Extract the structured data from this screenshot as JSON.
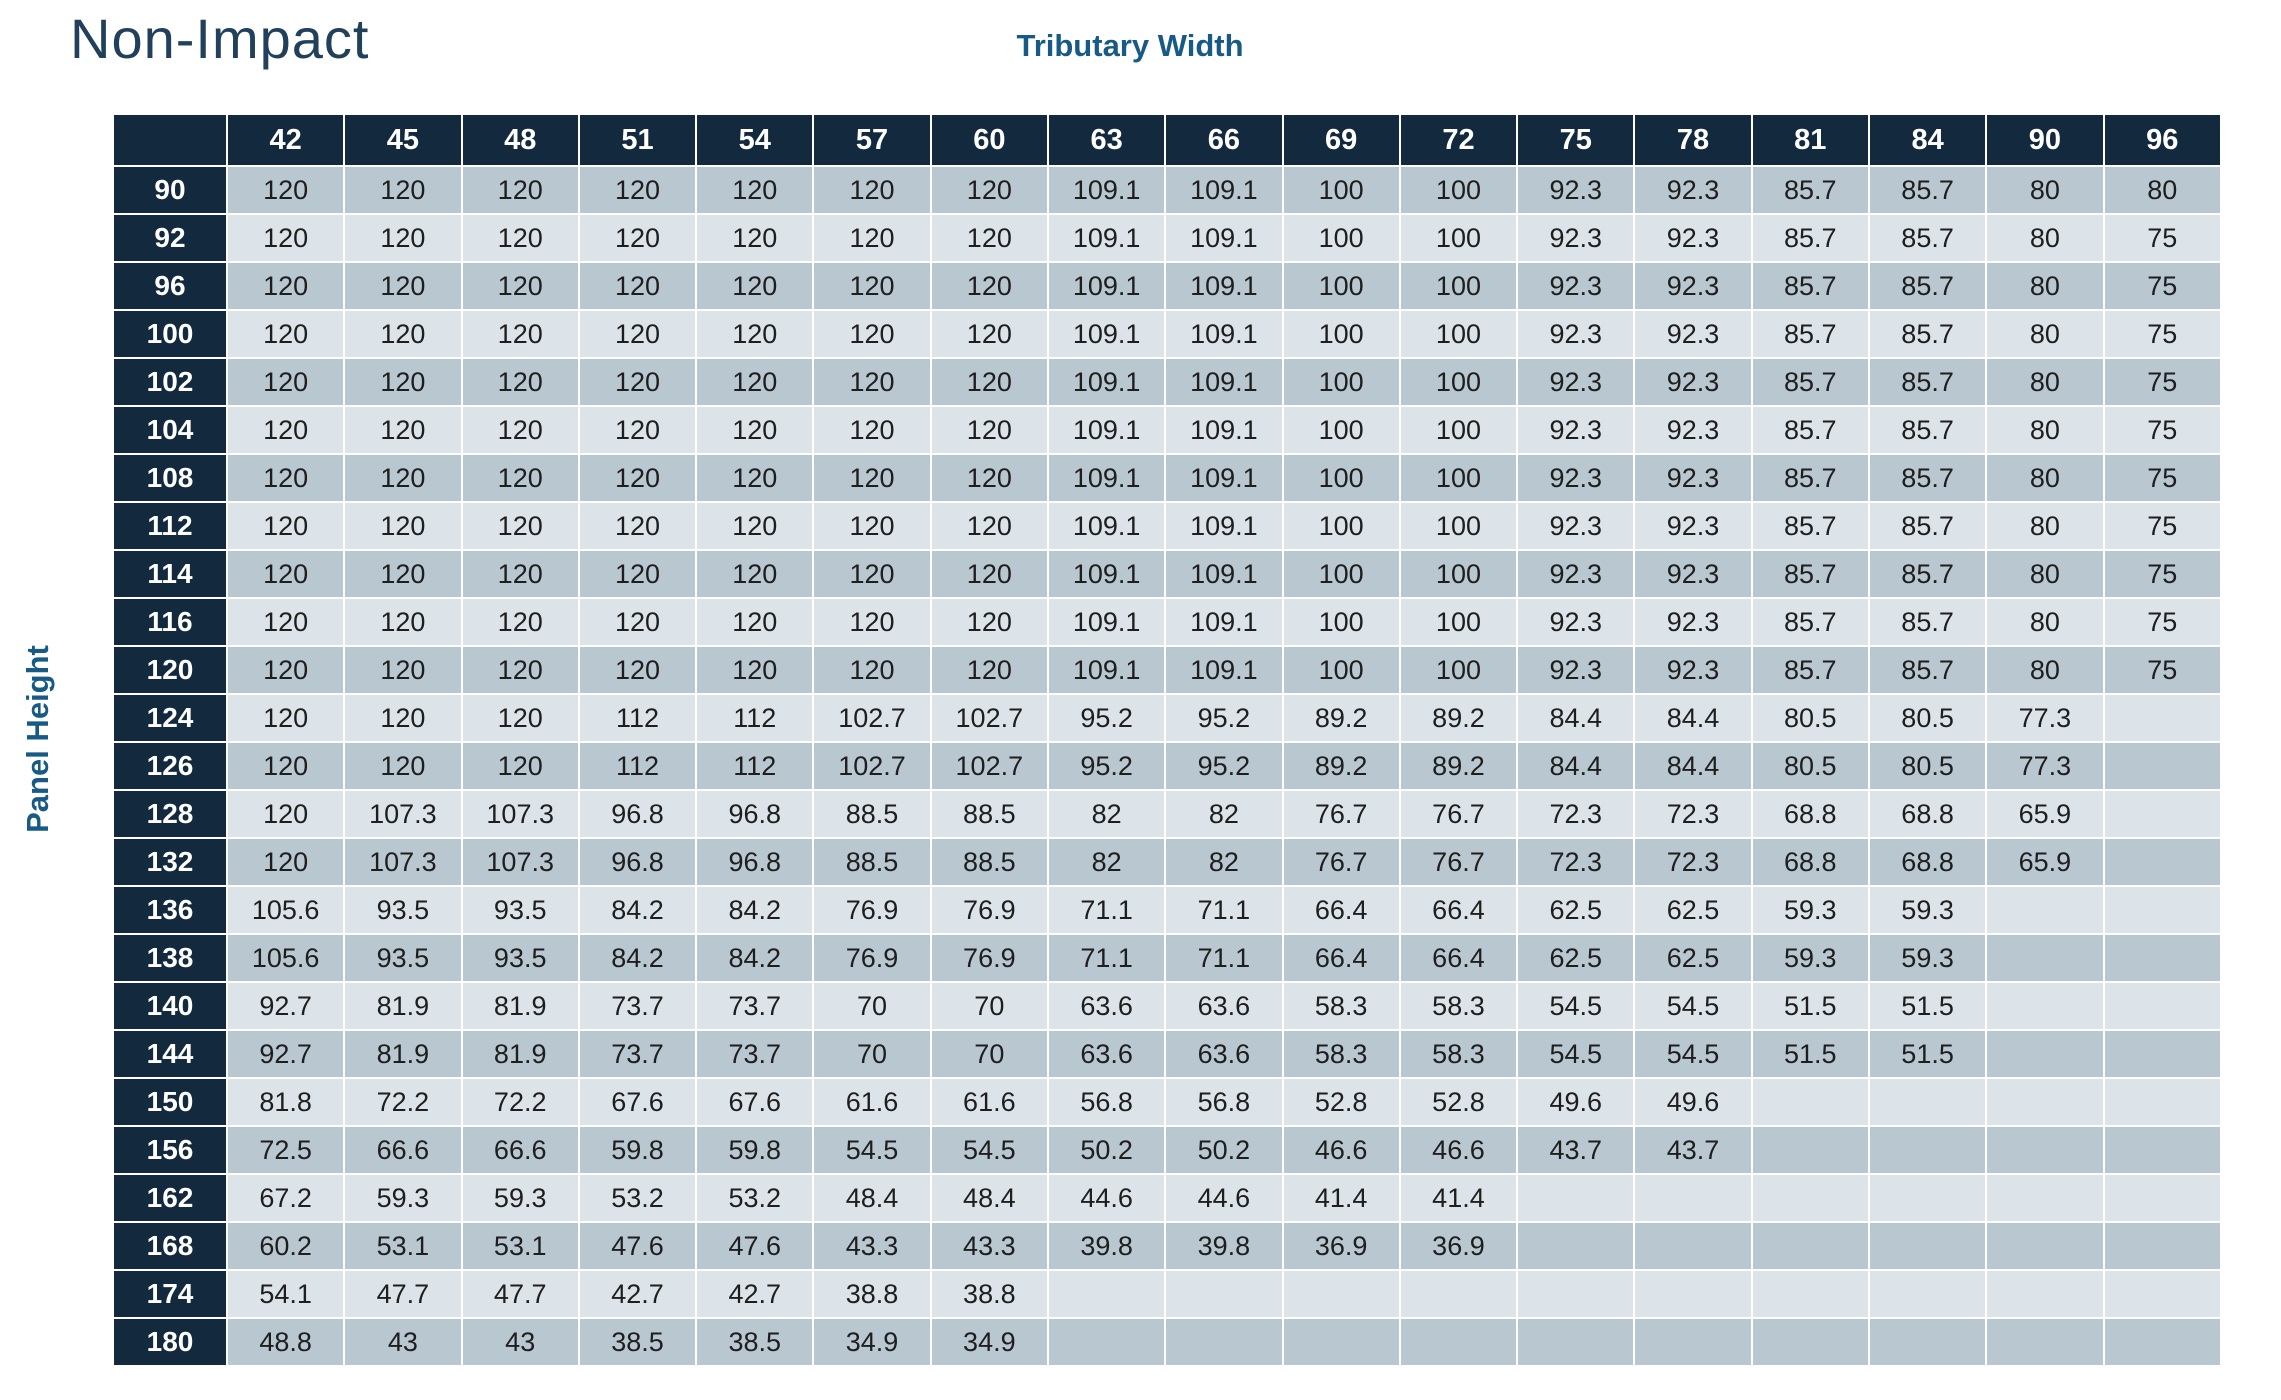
{
  "title": "Non-Impact",
  "labels": {
    "column_group": "Tributary Width",
    "row_group": "Panel Height"
  },
  "colors": {
    "header_navy": "#13293e",
    "stripe_dark": "#b9c7d0",
    "stripe_light": "#dde4e9",
    "label_blue": "#175a86",
    "title_navy": "#21405c",
    "cell_text": "#1e1e1e",
    "header_text": "#ffffff"
  },
  "chart_data": {
    "type": "table",
    "title": "Non-Impact",
    "xlabel": "Tributary Width",
    "ylabel": "Panel Height",
    "columns": [
      "42",
      "45",
      "48",
      "51",
      "54",
      "57",
      "60",
      "63",
      "66",
      "69",
      "72",
      "75",
      "78",
      "81",
      "84",
      "90",
      "96"
    ],
    "corner": "",
    "rows": [
      {
        "height": "90",
        "values": [
          "120",
          "120",
          "120",
          "120",
          "120",
          "120",
          "120",
          "109.1",
          "109.1",
          "100",
          "100",
          "92.3",
          "92.3",
          "85.7",
          "85.7",
          "80",
          "80"
        ]
      },
      {
        "height": "92",
        "values": [
          "120",
          "120",
          "120",
          "120",
          "120",
          "120",
          "120",
          "109.1",
          "109.1",
          "100",
          "100",
          "92.3",
          "92.3",
          "85.7",
          "85.7",
          "80",
          "75"
        ]
      },
      {
        "height": "96",
        "values": [
          "120",
          "120",
          "120",
          "120",
          "120",
          "120",
          "120",
          "109.1",
          "109.1",
          "100",
          "100",
          "92.3",
          "92.3",
          "85.7",
          "85.7",
          "80",
          "75"
        ]
      },
      {
        "height": "100",
        "values": [
          "120",
          "120",
          "120",
          "120",
          "120",
          "120",
          "120",
          "109.1",
          "109.1",
          "100",
          "100",
          "92.3",
          "92.3",
          "85.7",
          "85.7",
          "80",
          "75"
        ]
      },
      {
        "height": "102",
        "values": [
          "120",
          "120",
          "120",
          "120",
          "120",
          "120",
          "120",
          "109.1",
          "109.1",
          "100",
          "100",
          "92.3",
          "92.3",
          "85.7",
          "85.7",
          "80",
          "75"
        ]
      },
      {
        "height": "104",
        "values": [
          "120",
          "120",
          "120",
          "120",
          "120",
          "120",
          "120",
          "109.1",
          "109.1",
          "100",
          "100",
          "92.3",
          "92.3",
          "85.7",
          "85.7",
          "80",
          "75"
        ]
      },
      {
        "height": "108",
        "values": [
          "120",
          "120",
          "120",
          "120",
          "120",
          "120",
          "120",
          "109.1",
          "109.1",
          "100",
          "100",
          "92.3",
          "92.3",
          "85.7",
          "85.7",
          "80",
          "75"
        ]
      },
      {
        "height": "112",
        "values": [
          "120",
          "120",
          "120",
          "120",
          "120",
          "120",
          "120",
          "109.1",
          "109.1",
          "100",
          "100",
          "92.3",
          "92.3",
          "85.7",
          "85.7",
          "80",
          "75"
        ]
      },
      {
        "height": "114",
        "values": [
          "120",
          "120",
          "120",
          "120",
          "120",
          "120",
          "120",
          "109.1",
          "109.1",
          "100",
          "100",
          "92.3",
          "92.3",
          "85.7",
          "85.7",
          "80",
          "75"
        ]
      },
      {
        "height": "116",
        "values": [
          "120",
          "120",
          "120",
          "120",
          "120",
          "120",
          "120",
          "109.1",
          "109.1",
          "100",
          "100",
          "92.3",
          "92.3",
          "85.7",
          "85.7",
          "80",
          "75"
        ]
      },
      {
        "height": "120",
        "values": [
          "120",
          "120",
          "120",
          "120",
          "120",
          "120",
          "120",
          "109.1",
          "109.1",
          "100",
          "100",
          "92.3",
          "92.3",
          "85.7",
          "85.7",
          "80",
          "75"
        ]
      },
      {
        "height": "124",
        "values": [
          "120",
          "120",
          "120",
          "112",
          "112",
          "102.7",
          "102.7",
          "95.2",
          "95.2",
          "89.2",
          "89.2",
          "84.4",
          "84.4",
          "80.5",
          "80.5",
          "77.3",
          ""
        ]
      },
      {
        "height": "126",
        "values": [
          "120",
          "120",
          "120",
          "112",
          "112",
          "102.7",
          "102.7",
          "95.2",
          "95.2",
          "89.2",
          "89.2",
          "84.4",
          "84.4",
          "80.5",
          "80.5",
          "77.3",
          ""
        ]
      },
      {
        "height": "128",
        "values": [
          "120",
          "107.3",
          "107.3",
          "96.8",
          "96.8",
          "88.5",
          "88.5",
          "82",
          "82",
          "76.7",
          "76.7",
          "72.3",
          "72.3",
          "68.8",
          "68.8",
          "65.9",
          ""
        ]
      },
      {
        "height": "132",
        "values": [
          "120",
          "107.3",
          "107.3",
          "96.8",
          "96.8",
          "88.5",
          "88.5",
          "82",
          "82",
          "76.7",
          "76.7",
          "72.3",
          "72.3",
          "68.8",
          "68.8",
          "65.9",
          ""
        ]
      },
      {
        "height": "136",
        "values": [
          "105.6",
          "93.5",
          "93.5",
          "84.2",
          "84.2",
          "76.9",
          "76.9",
          "71.1",
          "71.1",
          "66.4",
          "66.4",
          "62.5",
          "62.5",
          "59.3",
          "59.3",
          "",
          ""
        ]
      },
      {
        "height": "138",
        "values": [
          "105.6",
          "93.5",
          "93.5",
          "84.2",
          "84.2",
          "76.9",
          "76.9",
          "71.1",
          "71.1",
          "66.4",
          "66.4",
          "62.5",
          "62.5",
          "59.3",
          "59.3",
          "",
          ""
        ]
      },
      {
        "height": "140",
        "values": [
          "92.7",
          "81.9",
          "81.9",
          "73.7",
          "73.7",
          "70",
          "70",
          "63.6",
          "63.6",
          "58.3",
          "58.3",
          "54.5",
          "54.5",
          "51.5",
          "51.5",
          "",
          ""
        ]
      },
      {
        "height": "144",
        "values": [
          "92.7",
          "81.9",
          "81.9",
          "73.7",
          "73.7",
          "70",
          "70",
          "63.6",
          "63.6",
          "58.3",
          "58.3",
          "54.5",
          "54.5",
          "51.5",
          "51.5",
          "",
          ""
        ]
      },
      {
        "height": "150",
        "values": [
          "81.8",
          "72.2",
          "72.2",
          "67.6",
          "67.6",
          "61.6",
          "61.6",
          "56.8",
          "56.8",
          "52.8",
          "52.8",
          "49.6",
          "49.6",
          "",
          "",
          "",
          ""
        ]
      },
      {
        "height": "156",
        "values": [
          "72.5",
          "66.6",
          "66.6",
          "59.8",
          "59.8",
          "54.5",
          "54.5",
          "50.2",
          "50.2",
          "46.6",
          "46.6",
          "43.7",
          "43.7",
          "",
          "",
          "",
          ""
        ]
      },
      {
        "height": "162",
        "values": [
          "67.2",
          "59.3",
          "59.3",
          "53.2",
          "53.2",
          "48.4",
          "48.4",
          "44.6",
          "44.6",
          "41.4",
          "41.4",
          "",
          "",
          "",
          "",
          "",
          ""
        ]
      },
      {
        "height": "168",
        "values": [
          "60.2",
          "53.1",
          "53.1",
          "47.6",
          "47.6",
          "43.3",
          "43.3",
          "39.8",
          "39.8",
          "36.9",
          "36.9",
          "",
          "",
          "",
          "",
          "",
          ""
        ]
      },
      {
        "height": "174",
        "values": [
          "54.1",
          "47.7",
          "47.7",
          "42.7",
          "42.7",
          "38.8",
          "38.8",
          "",
          "",
          "",
          "",
          "",
          "",
          "",
          "",
          "",
          ""
        ]
      },
      {
        "height": "180",
        "values": [
          "48.8",
          "43",
          "43",
          "38.5",
          "38.5",
          "34.9",
          "34.9",
          "",
          "",
          "",
          "",
          "",
          "",
          "",
          "",
          "",
          ""
        ]
      }
    ]
  }
}
